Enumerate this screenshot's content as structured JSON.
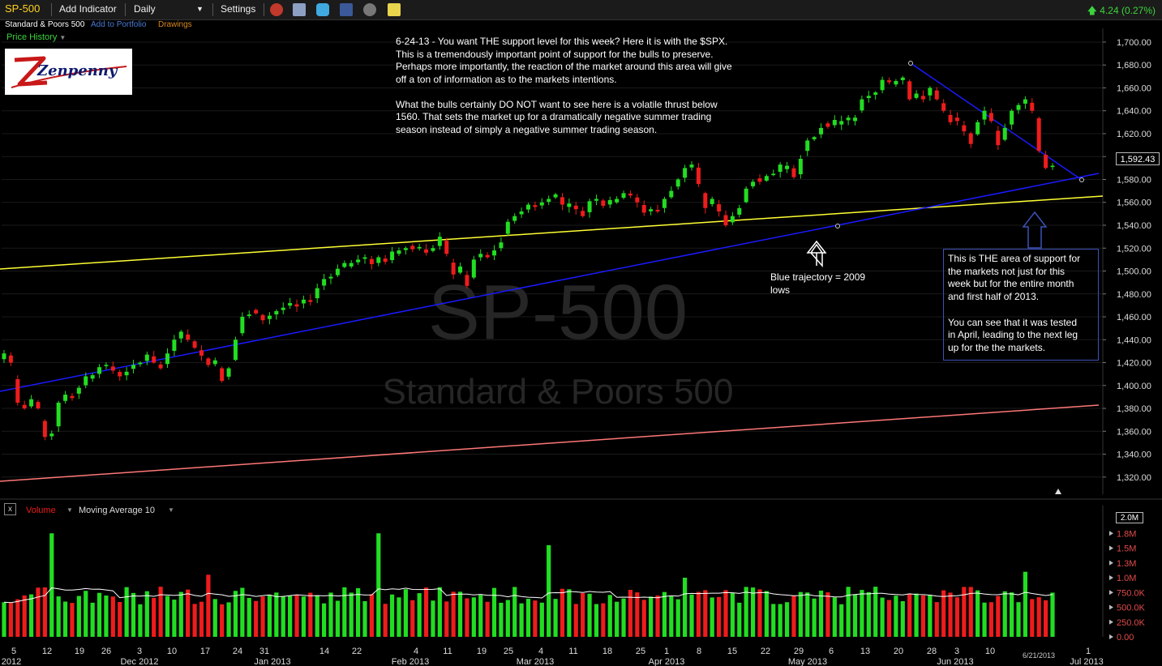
{
  "toolbar": {
    "symbol": "SP-500",
    "add_indicator": "Add Indicator",
    "interval": "Daily",
    "settings": "Settings",
    "change": "4.24 (0.27%)",
    "icons": [
      "alarm-clock-icon",
      "save-icon",
      "twitter-icon",
      "facebook-icon",
      "link-icon",
      "note-icon"
    ]
  },
  "subbar": {
    "name": "Standard & Poors 500",
    "add_to_portfolio": "Add to Portfolio",
    "drawings": "Drawings"
  },
  "price_history_label": "Price History",
  "logo_text": "Zenpenny",
  "watermark": {
    "symbol": "SP-500",
    "name": "Standard & Poors 500"
  },
  "annotations": {
    "main": "6-24-13 - You want THE support level for this week? Here it is with the $SPX.\nThis is a tremendously important point of support for the bulls to preserve.\nPerhaps more importantly, the reaction of the market around this area will give\noff a ton of information as to the markets intentions.\n\nWhat the bulls certainly DO NOT want to see here is a volatile thrust below\n1560. That sets the market up for a dramatically negative summer trading\nseason instead of simply a negative summer trading season.",
    "blue_trajectory": "Blue trajectory = 2009\nlows",
    "support_box": "This is THE area of support for\nthe markets not just for this\nweek but for the entire month\nand first half of 2013.\n\nYou can see that it was tested\nin April, leading to the next leg\nup for the the markets."
  },
  "volume_panel": {
    "label": "Volume",
    "indicator": "Moving Average 10",
    "last_label": "2.0M"
  },
  "colors": {
    "up": "#22dd22",
    "down": "#ee1c1c",
    "yellow_line": "#ffff33",
    "blue_line": "#1a1aff",
    "pink_line": "#ff7777",
    "grid": "#1a1a1a"
  },
  "chart_data": {
    "type": "candlestick",
    "last_price": "1,592.43",
    "date_markers": "6/21/2013",
    "price_axis": {
      "ylim": [
        1305,
        1712
      ],
      "ticks": [
        1320,
        1340,
        1360,
        1380,
        1400,
        1420,
        1440,
        1460,
        1480,
        1500,
        1520,
        1540,
        1560,
        1580,
        1600,
        1620,
        1640,
        1660,
        1680,
        1700
      ],
      "tick_labels": [
        "1,320.00",
        "1,340.00",
        "1,360.00",
        "1,380.00",
        "1,400.00",
        "1,420.00",
        "1,440.00",
        "1,460.00",
        "1,480.00",
        "1,500.00",
        "1,520.00",
        "1,540.00",
        "1,560.00",
        "1,580.00",
        "1,600.00",
        "1,620.00",
        "1,640.00",
        "1,660.00",
        "1,680.00",
        "1,700.00"
      ]
    },
    "volume_axis": {
      "ylim": [
        0,
        2.0
      ],
      "ticks": [
        0,
        0.25,
        0.5,
        0.75,
        1.0,
        1.25,
        1.5,
        1.75
      ],
      "tick_labels": [
        "0.00",
        "250.0K",
        "500.0K",
        "750.0K",
        "1.0M",
        "1.3M",
        "1.5M",
        "1.8M"
      ]
    },
    "x_axis": {
      "day_labels": [
        "5",
        "12",
        "19",
        "26",
        "3",
        "10",
        "17",
        "24",
        "31",
        "14",
        "22",
        "4",
        "11",
        "19",
        "25",
        "4",
        "11",
        "18",
        "25",
        "1",
        "8",
        "15",
        "22",
        "29",
        "6",
        "13",
        "20",
        "28",
        "3",
        "10",
        "1"
      ],
      "month_labels": [
        "2012",
        "Dec 2012",
        "Jan 2013",
        "Feb 2013",
        "Mar 2013",
        "Apr 2013",
        "May 2013",
        "Jun 2013",
        "Jul 2013"
      ]
    },
    "closes": [
      1428,
      1420,
      1385,
      1380,
      1388,
      1380,
      1355,
      1358,
      1385,
      1392,
      1389,
      1398,
      1408,
      1409,
      1416,
      1418,
      1413,
      1408,
      1412,
      1418,
      1420,
      1427,
      1420,
      1415,
      1428,
      1440,
      1447,
      1440,
      1433,
      1426,
      1418,
      1422,
      1404,
      1415,
      1440,
      1460,
      1462,
      1463,
      1457,
      1461,
      1465,
      1468,
      1472,
      1469,
      1475,
      1473,
      1485,
      1493,
      1495,
      1502,
      1507,
      1507,
      1510,
      1512,
      1506,
      1512,
      1508,
      1517,
      1518,
      1520,
      1519,
      1521,
      1516,
      1520,
      1530,
      1515,
      1497,
      1504,
      1487,
      1510,
      1515,
      1512,
      1518,
      1525,
      1543,
      1548,
      1552,
      1558,
      1556,
      1560,
      1563,
      1567,
      1558,
      1559,
      1554,
      1548,
      1561,
      1563,
      1557,
      1562,
      1563,
      1568,
      1566,
      1560,
      1551,
      1554,
      1552,
      1563,
      1570,
      1580,
      1590,
      1593,
      1576,
      1555,
      1563,
      1552,
      1540,
      1548,
      1555,
      1572,
      1578,
      1578,
      1583,
      1585,
      1593,
      1592,
      1582,
      1598,
      1614,
      1617,
      1625,
      1626,
      1632,
      1631,
      1634,
      1634,
      1650,
      1653,
      1656,
      1667,
      1665,
      1666,
      1669,
      1650,
      1655,
      1650,
      1660,
      1650,
      1640,
      1630,
      1631,
      1622,
      1611,
      1630,
      1640,
      1631,
      1610,
      1625,
      1640,
      1645,
      1650,
      1640,
      1605,
      1590,
      1592
    ]
  }
}
